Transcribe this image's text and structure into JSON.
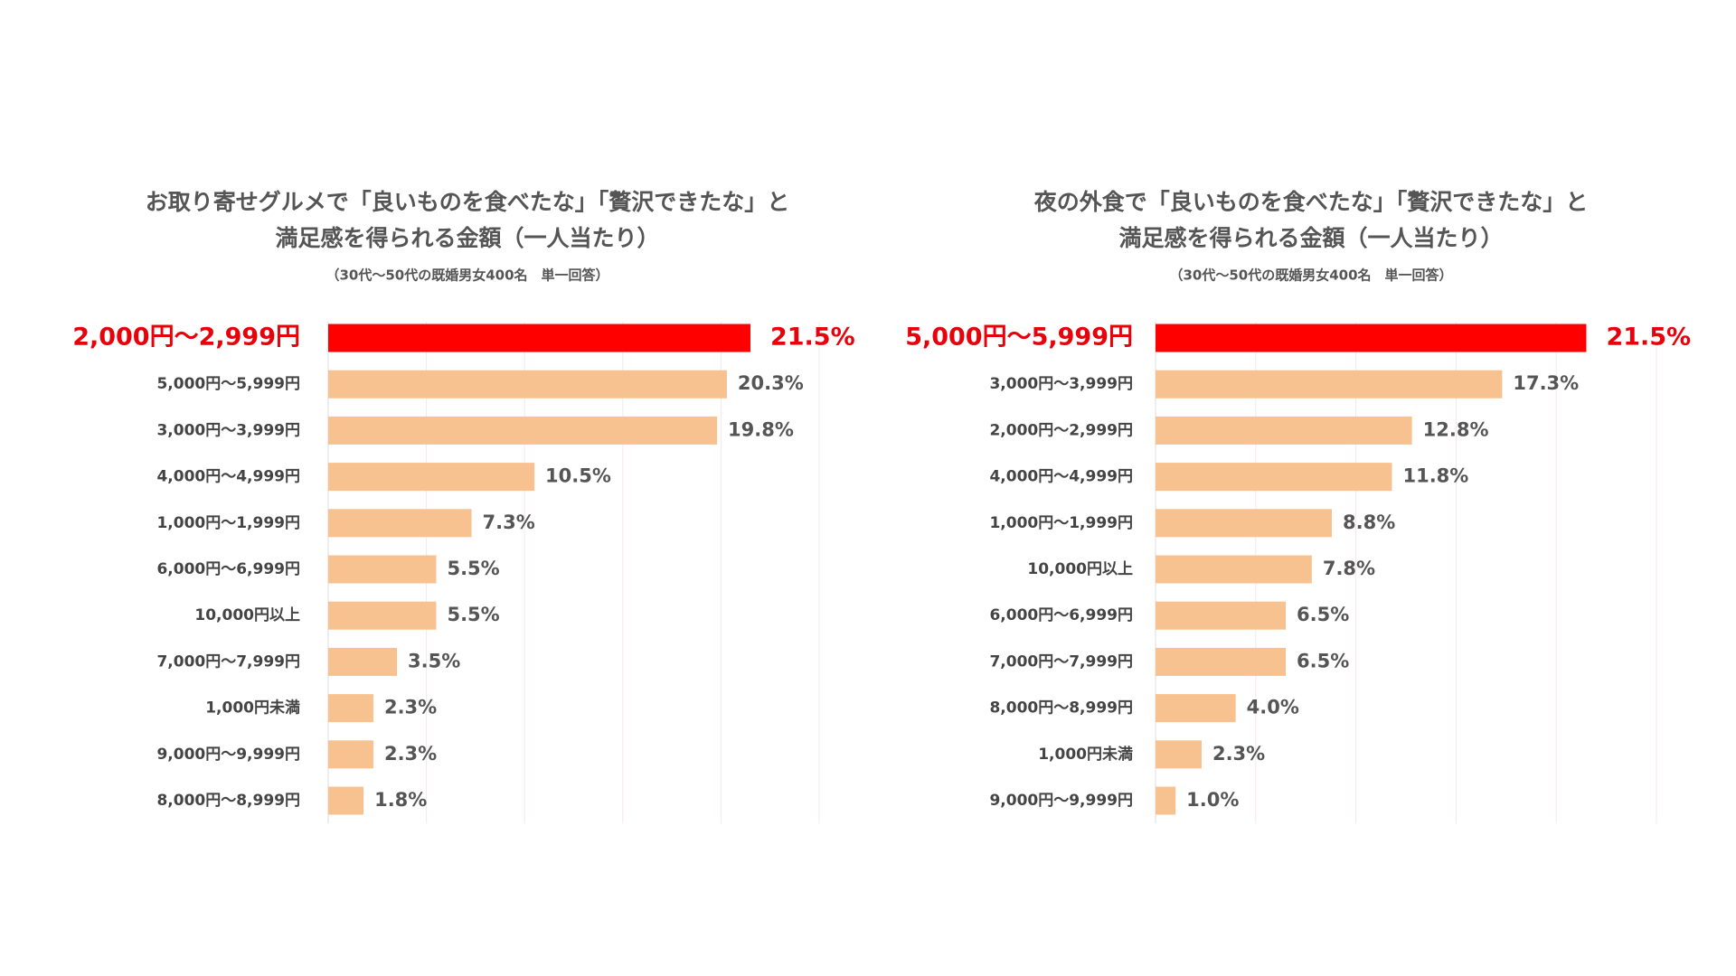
{
  "chart_data": [
    {
      "type": "hbar",
      "title": [
        "お取り寄せグルメで「良いものを食べたな」「贅沢できたな」と",
        "満足感を得られる金額（一人当たり）"
      ],
      "subtitle": "（30代〜50代の既婚男女400名　単一回答）",
      "categories": [
        "2,000円〜2,999円",
        "5,000円〜5,999円",
        "3,000円〜3,999円",
        "4,000円〜4,999円",
        "1,000円〜1,999円",
        "6,000円〜6,999円",
        "10,000円以上",
        "7,000円〜7,999円",
        "1,000円未満",
        "9,000円〜9,999円",
        "8,000円〜8,999円"
      ],
      "values": [
        21.5,
        20.3,
        19.8,
        10.5,
        7.3,
        5.5,
        5.5,
        3.5,
        2.3,
        2.3,
        1.8
      ],
      "value_labels": [
        "21.5%",
        "20.3%",
        "19.8%",
        "10.5%",
        "7.3%",
        "5.5%",
        "5.5%",
        "3.5%",
        "2.3%",
        "2.3%",
        "1.8%"
      ],
      "colors": [
        "#ff0000",
        "#f8c290",
        "#f8c290",
        "#f8c290",
        "#f8c290",
        "#f8c290",
        "#f8c290",
        "#f8c290",
        "#f8c290",
        "#f8c290",
        "#f8c290"
      ],
      "xlim": [
        0,
        25
      ],
      "xticks": [
        0,
        5,
        10,
        15,
        20,
        25
      ],
      "grid": true
    },
    {
      "type": "hbar",
      "title": [
        "夜の外食で「良いものを食べたな」「贅沢できたな」と",
        "満足感を得られる金額（一人当たり）"
      ],
      "subtitle": "（30代〜50代の既婚男女400名　単一回答）",
      "categories": [
        "5,000円〜5,999円",
        "3,000円〜3,999円",
        "2,000円〜2,999円",
        "4,000円〜4,999円",
        "1,000円〜1,999円",
        "10,000円以上",
        "6,000円〜6,999円",
        "7,000円〜7,999円",
        "8,000円〜8,999円",
        "1,000円未満",
        "9,000円〜9,999円"
      ],
      "values": [
        21.5,
        17.3,
        12.8,
        11.8,
        8.8,
        7.8,
        6.5,
        6.5,
        4.0,
        2.3,
        1.0
      ],
      "value_labels": [
        "21.5%",
        "17.3%",
        "12.8%",
        "11.8%",
        "8.8%",
        "7.8%",
        "6.5%",
        "6.5%",
        "4.0%",
        "2.3%",
        "1.0%"
      ],
      "colors": [
        "#ff0000",
        "#f8c290",
        "#f8c290",
        "#f8c290",
        "#f8c290",
        "#f8c290",
        "#f8c290",
        "#f8c290",
        "#f8c290",
        "#f8c290",
        "#f8c290"
      ],
      "xlim": [
        0,
        25
      ],
      "xticks": [
        0,
        5,
        10,
        15,
        20,
        25
      ],
      "grid": true
    }
  ]
}
